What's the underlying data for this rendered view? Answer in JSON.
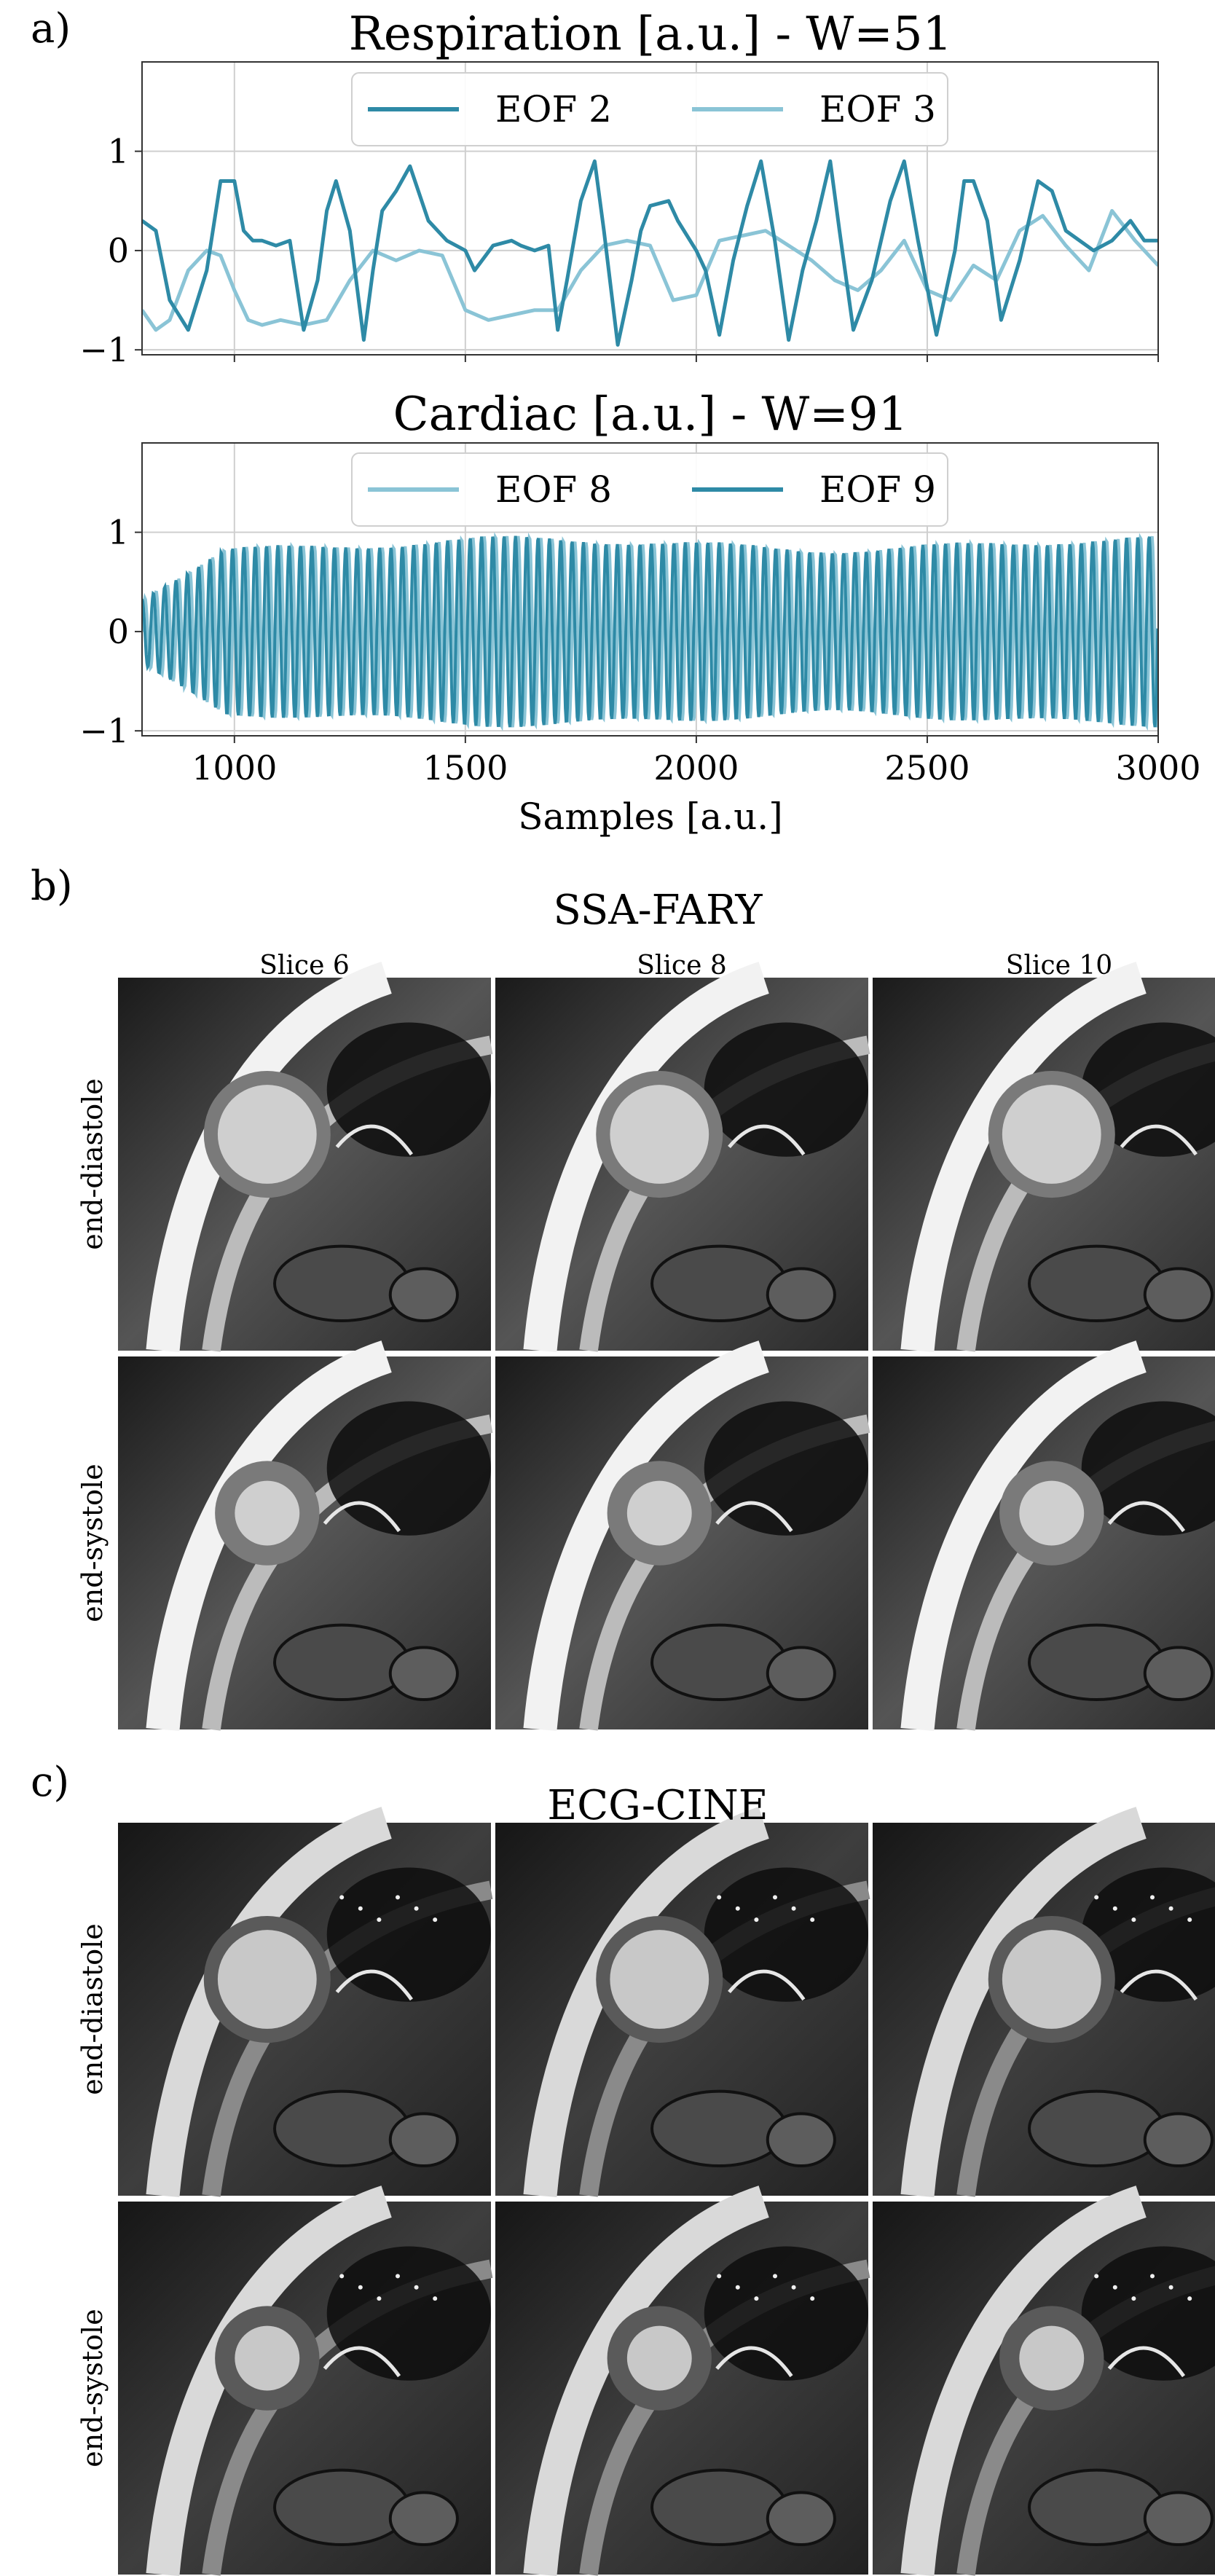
{
  "panel_labels": {
    "a": "a)",
    "b": "b)",
    "c": "c)"
  },
  "chart_data": [
    {
      "type": "line",
      "title": "Respiration [a.u.] - W=51",
      "xlabel": "",
      "ylabel": "",
      "xlim": [
        800,
        3000
      ],
      "ylim": [
        -1.05,
        1.9
      ],
      "yticks": [
        "1",
        "0",
        "−1"
      ],
      "ytick_values": [
        1,
        0,
        -1
      ],
      "xticks_values": [
        1000,
        1500,
        2000,
        2500,
        3000
      ],
      "grid": true,
      "legend": "top-center",
      "series": [
        {
          "name": "EOF 2",
          "color": "#2e8aa6",
          "x": [
            800,
            830,
            860,
            900,
            940,
            970,
            1000,
            1020,
            1040,
            1060,
            1090,
            1120,
            1150,
            1180,
            1200,
            1220,
            1250,
            1280,
            1300,
            1320,
            1350,
            1380,
            1420,
            1460,
            1500,
            1520,
            1560,
            1600,
            1620,
            1650,
            1680,
            1700,
            1720,
            1750,
            1780,
            1800,
            1830,
            1860,
            1880,
            1900,
            1940,
            1960,
            2000,
            2020,
            2050,
            2080,
            2110,
            2140,
            2170,
            2200,
            2230,
            2260,
            2290,
            2310,
            2340,
            2380,
            2420,
            2450,
            2480,
            2520,
            2560,
            2580,
            2600,
            2630,
            2660,
            2700,
            2740,
            2770,
            2800,
            2830,
            2860,
            2900,
            2940,
            2970,
            3000
          ],
          "y": [
            0.3,
            0.2,
            -0.5,
            -0.8,
            -0.2,
            0.7,
            0.7,
            0.2,
            0.1,
            0.1,
            0.05,
            0.1,
            -0.8,
            -0.3,
            0.4,
            0.7,
            0.2,
            -0.9,
            -0.2,
            0.4,
            0.6,
            0.85,
            0.3,
            0.1,
            0.0,
            -0.2,
            0.05,
            0.1,
            0.05,
            0.0,
            0.05,
            -0.8,
            -0.3,
            0.5,
            0.9,
            0.2,
            -0.95,
            -0.3,
            0.2,
            0.45,
            0.5,
            0.3,
            0.0,
            -0.2,
            -0.85,
            -0.1,
            0.45,
            0.9,
            0.1,
            -0.9,
            -0.2,
            0.3,
            0.9,
            0.2,
            -0.8,
            -0.3,
            0.5,
            0.9,
            0.1,
            -0.85,
            0.0,
            0.7,
            0.7,
            0.3,
            -0.7,
            -0.1,
            0.7,
            0.6,
            0.2,
            0.1,
            0.0,
            0.1,
            0.3,
            0.1,
            0.1
          ]
        },
        {
          "name": "EOF 3",
          "color": "#8ac4d6",
          "x": [
            800,
            830,
            860,
            900,
            940,
            970,
            1000,
            1030,
            1060,
            1100,
            1150,
            1200,
            1250,
            1300,
            1350,
            1400,
            1450,
            1500,
            1550,
            1600,
            1650,
            1700,
            1750,
            1800,
            1850,
            1900,
            1950,
            2000,
            2050,
            2100,
            2150,
            2200,
            2250,
            2300,
            2350,
            2400,
            2450,
            2500,
            2550,
            2600,
            2650,
            2700,
            2750,
            2800,
            2850,
            2900,
            2950,
            3000
          ],
          "y": [
            -0.6,
            -0.8,
            -0.7,
            -0.2,
            0.0,
            -0.05,
            -0.4,
            -0.7,
            -0.75,
            -0.7,
            -0.75,
            -0.7,
            -0.3,
            0.0,
            -0.1,
            0.0,
            -0.05,
            -0.6,
            -0.7,
            -0.65,
            -0.6,
            -0.6,
            -0.2,
            0.05,
            0.1,
            0.05,
            -0.5,
            -0.45,
            0.1,
            0.15,
            0.2,
            0.05,
            -0.1,
            -0.3,
            -0.4,
            -0.2,
            0.1,
            -0.4,
            -0.5,
            -0.15,
            -0.3,
            0.2,
            0.35,
            0.05,
            -0.2,
            0.4,
            0.1,
            -0.15
          ]
        }
      ]
    },
    {
      "type": "line",
      "title": "Cardiac [a.u.] - W=91",
      "xlabel": "Samples [a.u.]",
      "ylabel": "",
      "xlim": [
        800,
        3000
      ],
      "ylim": [
        -1.05,
        1.9
      ],
      "yticks": [
        "1",
        "0",
        "−1"
      ],
      "ytick_values": [
        1,
        0,
        -1
      ],
      "xticks": [
        "1000",
        "1500",
        "2000",
        "2500",
        "3000"
      ],
      "xticks_values": [
        1000,
        1500,
        2000,
        2500,
        3000
      ],
      "grid": true,
      "legend": "top-center",
      "oscillation": {
        "period_samples": 24.5,
        "amplitude_start": 0.35,
        "amplitude_typical": 0.88
      },
      "series": [
        {
          "name": "EOF 8",
          "color": "#8ac4d6",
          "phase": 0.0
        },
        {
          "name": "EOF 9",
          "color": "#2e8aa6",
          "phase": 1.5708
        }
      ]
    }
  ],
  "ssa_fary": {
    "title": "SSA-FARY",
    "columns": [
      "Slice 6",
      "Slice 8",
      "Slice 10"
    ],
    "rows": [
      "end-diastole",
      "end-systole"
    ]
  },
  "ecg_cine": {
    "title": "ECG-CINE",
    "rows": [
      "end-diastole",
      "end-systole"
    ]
  }
}
